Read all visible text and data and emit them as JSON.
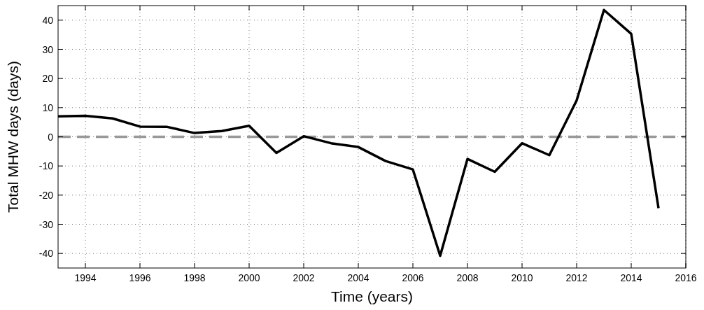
{
  "chart_data": {
    "type": "line",
    "xlabel": "Time (years)",
    "ylabel": "Total MHW days (days)",
    "x": [
      1993,
      1994,
      1995,
      1996,
      1997,
      1998,
      1999,
      2000,
      2001,
      2002,
      2003,
      2004,
      2005,
      2006,
      2007,
      2008,
      2009,
      2010,
      2011,
      2012,
      2013,
      2014,
      2015
    ],
    "series": [
      {
        "color": "#000000",
        "values": [
          7,
          7.2,
          6.3,
          3.5,
          3.4,
          1.3,
          2,
          3.8,
          -5.5,
          0.2,
          -2.2,
          -3.5,
          -8.3,
          -11.2,
          -40.8,
          -7.6,
          -12,
          -2.2,
          -6.3,
          12.5,
          43.5,
          35.3,
          -24.5
        ]
      }
    ],
    "xlim": [
      1993,
      2016
    ],
    "xticks": [
      1994,
      1996,
      1998,
      2000,
      2002,
      2004,
      2006,
      2008,
      2010,
      2012,
      2014,
      2016
    ],
    "ylim": [
      -45,
      45
    ],
    "yticks": [
      -40,
      -30,
      -20,
      -10,
      0,
      10,
      20,
      30,
      40
    ],
    "grid": true,
    "line_style": "solid",
    "ref_lines": [
      {
        "axis": "y",
        "value": 0,
        "color": "#999999",
        "line_style": "dashed"
      }
    ]
  }
}
